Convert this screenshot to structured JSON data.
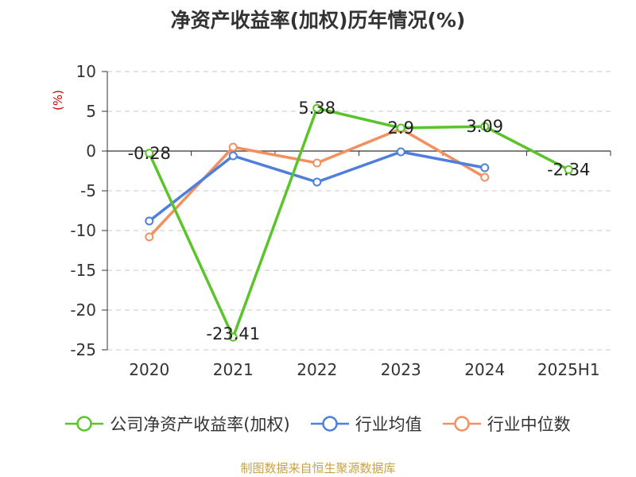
{
  "chart_data": {
    "type": "line",
    "title": "净资产收益率(加权)历年情况(%)",
    "ylabel": "(%)",
    "categories": [
      "2020",
      "2021",
      "2022",
      "2023",
      "2024",
      "2025H1"
    ],
    "ylim": [
      -25,
      10
    ],
    "yticks": [
      10,
      5,
      0,
      -5,
      -10,
      -15,
      -20,
      -25
    ],
    "grid": true,
    "legend_position": "bottom",
    "series": [
      {
        "name": "公司净资产收益率(加权)",
        "color": "#5cc42b",
        "values": [
          -0.28,
          -23.41,
          5.38,
          2.9,
          3.09,
          -2.34
        ],
        "labels": [
          "-0.28",
          "-23.41",
          "5.38",
          "2.9",
          "3.09",
          "-2.34"
        ]
      },
      {
        "name": "行业均值",
        "color": "#4f7fdc",
        "values": [
          -8.8,
          -0.6,
          -3.9,
          -0.1,
          -2.1,
          null
        ]
      },
      {
        "name": "行业中位数",
        "color": "#f39060",
        "values": [
          -10.8,
          0.5,
          -1.5,
          2.8,
          -3.3,
          null
        ]
      }
    ]
  },
  "source": "制图数据来自恒生聚源数据库"
}
